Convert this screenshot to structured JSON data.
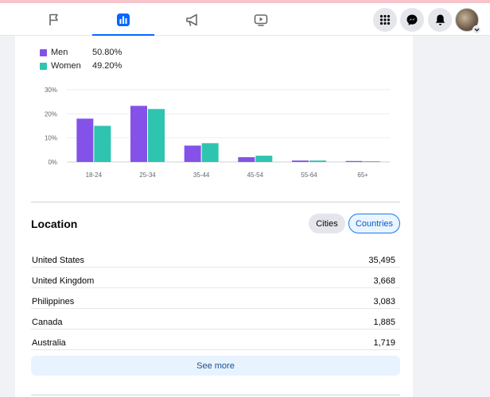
{
  "nav": {
    "tabs": [
      {
        "icon": "flag-icon",
        "active": false
      },
      {
        "icon": "bar-chart-icon",
        "active": true
      },
      {
        "icon": "megaphone-icon",
        "active": false
      },
      {
        "icon": "video-play-icon",
        "active": false
      }
    ],
    "right_buttons": [
      "menu-grid-icon",
      "messenger-icon",
      "notifications-bell-icon"
    ],
    "accent_color": "#0866ff"
  },
  "gender_legend": [
    {
      "label": "Men",
      "value": "50.80%",
      "color": "#8452e8"
    },
    {
      "label": "Women",
      "value": "49.20%",
      "color": "#2ec4b0"
    }
  ],
  "chart_data": {
    "type": "bar",
    "categories": [
      "18-24",
      "25-34",
      "35-44",
      "45-54",
      "55-64",
      "65+"
    ],
    "series": [
      {
        "name": "Men",
        "color": "#8452e8",
        "values": [
          18,
          23.3,
          6.8,
          2,
          0.6,
          0.4
        ]
      },
      {
        "name": "Women",
        "color": "#2ec4b0",
        "values": [
          15,
          22,
          7.8,
          2.6,
          0.6,
          0.3
        ]
      }
    ],
    "ylim": [
      0,
      30
    ],
    "yticks": [
      "0%",
      "10%",
      "20%",
      "30%"
    ],
    "grid": true
  },
  "location": {
    "title": "Location",
    "filters": [
      "Cities",
      "Countries"
    ],
    "selected_filter": "Countries",
    "rows": [
      {
        "name": "United States",
        "value": "35,495"
      },
      {
        "name": "United Kingdom",
        "value": "3,668"
      },
      {
        "name": "Philippines",
        "value": "3,083"
      },
      {
        "name": "Canada",
        "value": "1,885"
      },
      {
        "name": "Australia",
        "value": "1,719"
      }
    ],
    "see_more_label": "See more"
  }
}
